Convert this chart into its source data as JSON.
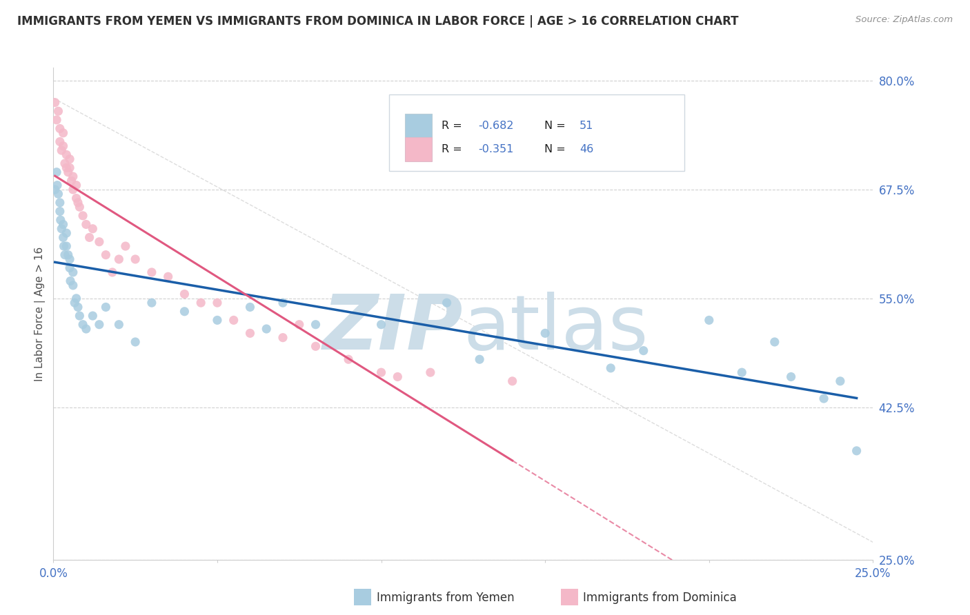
{
  "title": "IMMIGRANTS FROM YEMEN VS IMMIGRANTS FROM DOMINICA IN LABOR FORCE | AGE > 16 CORRELATION CHART",
  "source": "Source: ZipAtlas.com",
  "ylabel": "In Labor Force | Age > 16",
  "xlim": [
    0.0,
    0.25
  ],
  "ylim": [
    0.25,
    0.815
  ],
  "xticks": [
    0.0,
    0.05,
    0.1,
    0.15,
    0.2,
    0.25
  ],
  "yticks": [
    0.25,
    0.425,
    0.55,
    0.675,
    0.8
  ],
  "xticklabels_show": [
    "0.0%",
    "25.0%"
  ],
  "yticklabels": [
    "25.0%",
    "42.5%",
    "55.0%",
    "67.5%",
    "80.0%"
  ],
  "yemen_color": "#a8cce0",
  "dominica_color": "#f4b8c8",
  "yemen_line_color": "#1a5ea8",
  "dominica_line_color": "#e05880",
  "dominica_line_dash": "#e8a0b8",
  "watermark_zip_color": "#ccdde8",
  "watermark_atlas_color": "#ccdde8",
  "legend_box_color": "#f0f4f8",
  "legend_border_color": "#d0d8e0",
  "yemen_scatter_x": [
    0.0005,
    0.001,
    0.0012,
    0.0015,
    0.002,
    0.002,
    0.0022,
    0.0025,
    0.003,
    0.003,
    0.0032,
    0.0035,
    0.004,
    0.004,
    0.0045,
    0.005,
    0.005,
    0.0052,
    0.006,
    0.006,
    0.0065,
    0.007,
    0.0075,
    0.008,
    0.009,
    0.01,
    0.012,
    0.014,
    0.016,
    0.02,
    0.025,
    0.03,
    0.04,
    0.05,
    0.06,
    0.065,
    0.07,
    0.08,
    0.1,
    0.12,
    0.13,
    0.15,
    0.17,
    0.18,
    0.2,
    0.21,
    0.22,
    0.225,
    0.235,
    0.24,
    0.245
  ],
  "yemen_scatter_y": [
    0.675,
    0.695,
    0.68,
    0.67,
    0.66,
    0.65,
    0.64,
    0.63,
    0.635,
    0.62,
    0.61,
    0.6,
    0.625,
    0.61,
    0.6,
    0.595,
    0.585,
    0.57,
    0.58,
    0.565,
    0.545,
    0.55,
    0.54,
    0.53,
    0.52,
    0.515,
    0.53,
    0.52,
    0.54,
    0.52,
    0.5,
    0.545,
    0.535,
    0.525,
    0.54,
    0.515,
    0.545,
    0.52,
    0.52,
    0.545,
    0.48,
    0.51,
    0.47,
    0.49,
    0.525,
    0.465,
    0.5,
    0.46,
    0.435,
    0.455,
    0.375
  ],
  "dominica_scatter_x": [
    0.0005,
    0.001,
    0.0015,
    0.002,
    0.002,
    0.0025,
    0.003,
    0.003,
    0.0035,
    0.004,
    0.004,
    0.0045,
    0.005,
    0.005,
    0.0055,
    0.006,
    0.006,
    0.007,
    0.007,
    0.0075,
    0.008,
    0.009,
    0.01,
    0.011,
    0.012,
    0.014,
    0.016,
    0.018,
    0.02,
    0.022,
    0.025,
    0.03,
    0.035,
    0.04,
    0.045,
    0.05,
    0.055,
    0.06,
    0.07,
    0.075,
    0.08,
    0.09,
    0.1,
    0.105,
    0.115,
    0.14
  ],
  "dominica_scatter_y": [
    0.775,
    0.755,
    0.765,
    0.745,
    0.73,
    0.72,
    0.74,
    0.725,
    0.705,
    0.715,
    0.7,
    0.695,
    0.71,
    0.7,
    0.685,
    0.69,
    0.675,
    0.68,
    0.665,
    0.66,
    0.655,
    0.645,
    0.635,
    0.62,
    0.63,
    0.615,
    0.6,
    0.58,
    0.595,
    0.61,
    0.595,
    0.58,
    0.575,
    0.555,
    0.545,
    0.545,
    0.525,
    0.51,
    0.505,
    0.52,
    0.495,
    0.48,
    0.465,
    0.46,
    0.465,
    0.455
  ],
  "background_color": "#ffffff",
  "grid_color": "#d0d0d0",
  "tick_color": "#4472c4",
  "title_color": "#303030",
  "source_color": "#909090"
}
